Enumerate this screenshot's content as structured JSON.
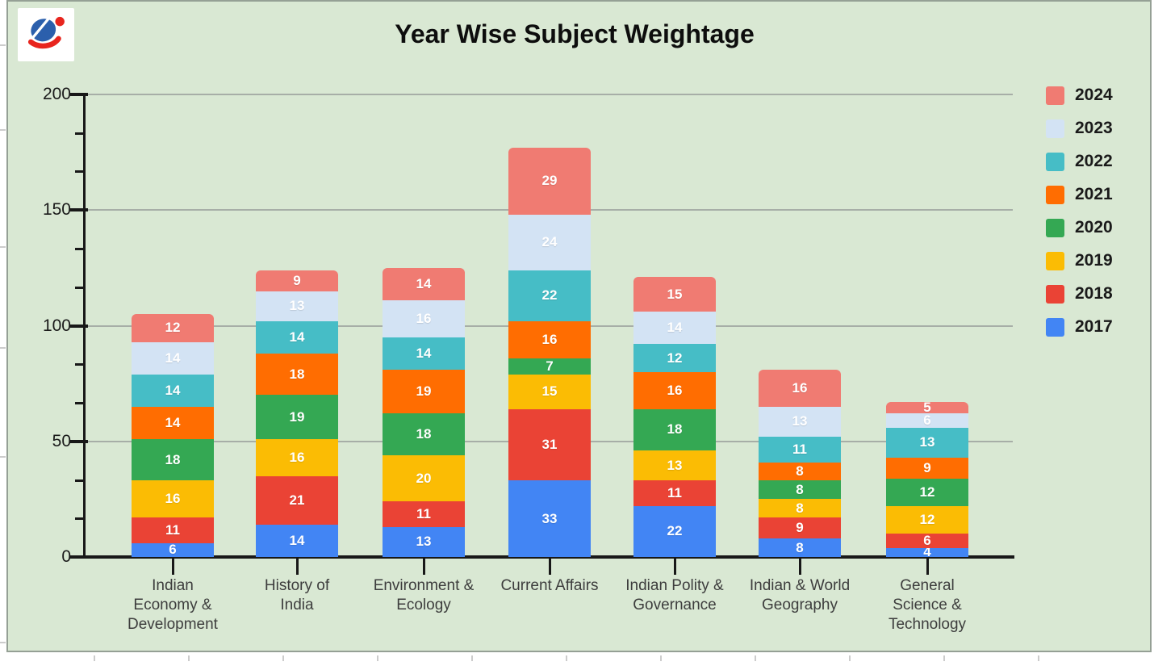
{
  "title": "Year Wise Subject Weightage",
  "logo": {
    "icon": "brand-logo"
  },
  "colors": {
    "background": "#d9e8d3",
    "grid": "#a7aea7",
    "axis": "#181818",
    "value_label": "#ffffff"
  },
  "chart_data": {
    "type": "bar",
    "stacked": true,
    "title": "Year Wise Subject Weightage",
    "xlabel": "",
    "ylabel": "",
    "ylim": [
      0,
      200
    ],
    "grid": true,
    "categories": [
      "Indian Economy & Development",
      "History of India",
      "Environment & Ecology",
      "Current Affairs",
      "Indian Polity & Governance",
      "Indian & World Geography",
      "General Science & Technology"
    ],
    "category_label_lines": [
      [
        "Indian",
        "Economy &",
        "Development"
      ],
      [
        "History of",
        "India"
      ],
      [
        "Environment &",
        "Ecology"
      ],
      [
        "Current Affairs"
      ],
      [
        "Indian Polity &",
        "Governance"
      ],
      [
        "Indian & World",
        "Geography"
      ],
      [
        "General",
        "Science &",
        "Technology"
      ]
    ],
    "series": [
      {
        "name": "2017",
        "color": "#4285f4",
        "values": [
          6,
          14,
          13,
          33,
          22,
          8,
          4
        ]
      },
      {
        "name": "2018",
        "color": "#ea4335",
        "values": [
          11,
          21,
          11,
          31,
          11,
          9,
          6
        ]
      },
      {
        "name": "2019",
        "color": "#fbbc04",
        "values": [
          16,
          16,
          20,
          15,
          13,
          8,
          12
        ]
      },
      {
        "name": "2020",
        "color": "#34a853",
        "values": [
          18,
          19,
          18,
          7,
          18,
          8,
          12
        ]
      },
      {
        "name": "2021",
        "color": "#ff6d01",
        "values": [
          14,
          18,
          19,
          16,
          16,
          8,
          9
        ]
      },
      {
        "name": "2022",
        "color": "#46bdc6",
        "values": [
          14,
          14,
          14,
          22,
          12,
          11,
          13
        ]
      },
      {
        "name": "2023",
        "color": "#d3e3f4",
        "values": [
          14,
          13,
          16,
          24,
          14,
          13,
          6
        ]
      },
      {
        "name": "2024",
        "color": "#f07b72",
        "values": [
          12,
          9,
          14,
          29,
          15,
          16,
          5
        ]
      }
    ],
    "totals": [
      105,
      124,
      125,
      177,
      121,
      81,
      67
    ],
    "y_axis": {
      "ticks": [
        0,
        50,
        100,
        150,
        200
      ],
      "minor_ticks_per_interval": 2
    },
    "legend": {
      "position": "right",
      "order_top_to_bottom": [
        "2024",
        "2023",
        "2022",
        "2021",
        "2020",
        "2019",
        "2018",
        "2017"
      ]
    }
  }
}
